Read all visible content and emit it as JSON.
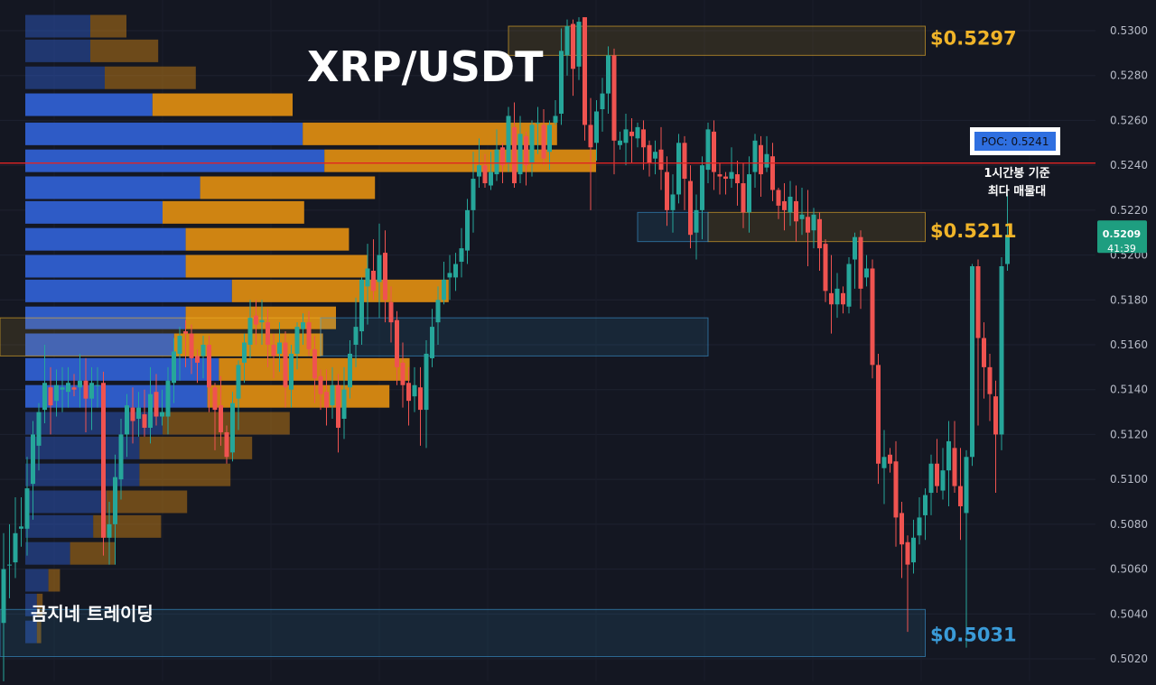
{
  "title": "XRP/USDT",
  "brand": "곰지네 트레이딩",
  "colors": {
    "background": "#141722",
    "up": "#26a69a",
    "down": "#ef5350",
    "volume_up": "#2f5fd0",
    "volume_down": "#d98a12",
    "resistance": "#f0b429",
    "support": "#3a9bd8",
    "poc_line": "#e02424",
    "price_badge": "#1e9e80"
  },
  "chart_data": {
    "type": "candlestick",
    "pair": "XRP/USDT",
    "yaxis": {
      "min": 0.5012,
      "max": 0.5312,
      "ticks": [
        "0.5300",
        "0.5280",
        "0.5260",
        "0.5240",
        "0.5220",
        "0.5200",
        "0.5180",
        "0.5160",
        "0.5140",
        "0.5120",
        "0.5100",
        "0.5080",
        "0.5060",
        "0.5040",
        "0.5020"
      ]
    },
    "candles": [
      [
        0.5036,
        0.506,
        0.501,
        0.5076
      ],
      [
        0.5062,
        0.5062,
        0.5047,
        0.508
      ],
      [
        0.5063,
        0.5076,
        0.5056,
        0.5092
      ],
      [
        0.5078,
        0.5079,
        0.507,
        0.5092
      ],
      [
        0.5078,
        0.5096,
        0.5066,
        0.511
      ],
      [
        0.5098,
        0.512,
        0.5082,
        0.5126
      ],
      [
        0.5115,
        0.513,
        0.5104,
        0.5134
      ],
      [
        0.5131,
        0.5143,
        0.5125,
        0.516
      ],
      [
        0.5141,
        0.5133,
        0.512,
        0.515
      ],
      [
        0.5135,
        0.5142,
        0.5128,
        0.5149
      ],
      [
        0.514,
        0.5141,
        0.513,
        0.515
      ],
      [
        0.5139,
        0.5143,
        0.5132,
        0.515
      ],
      [
        0.5141,
        0.514,
        0.5137,
        0.5147
      ],
      [
        0.5141,
        0.5144,
        0.5132,
        0.5156
      ],
      [
        0.5144,
        0.5136,
        0.5121,
        0.5154
      ],
      [
        0.5136,
        0.5143,
        0.5122,
        0.515
      ],
      [
        0.5142,
        0.5142,
        0.5132,
        0.515
      ],
      [
        0.5143,
        0.5074,
        0.5066,
        0.5148
      ],
      [
        0.5074,
        0.508,
        0.5062,
        0.509
      ],
      [
        0.508,
        0.5101,
        0.5062,
        0.5111
      ],
      [
        0.51,
        0.512,
        0.5091,
        0.5127
      ],
      [
        0.512,
        0.5133,
        0.511,
        0.5138
      ],
      [
        0.5132,
        0.5126,
        0.5116,
        0.5141
      ],
      [
        0.5127,
        0.5132,
        0.5119,
        0.5139
      ],
      [
        0.5129,
        0.5123,
        0.5119,
        0.514
      ],
      [
        0.5123,
        0.5138,
        0.5116,
        0.515
      ],
      [
        0.5139,
        0.5128,
        0.5124,
        0.5147
      ],
      [
        0.5128,
        0.513,
        0.5124,
        0.514
      ],
      [
        0.5128,
        0.5144,
        0.512,
        0.515
      ],
      [
        0.5143,
        0.5157,
        0.5134,
        0.5163
      ],
      [
        0.5156,
        0.5164,
        0.5144,
        0.5168
      ],
      [
        0.5166,
        0.5165,
        0.515,
        0.5171
      ],
      [
        0.5165,
        0.5154,
        0.5147,
        0.5169
      ],
      [
        0.5155,
        0.5152,
        0.5143,
        0.5158
      ],
      [
        0.5155,
        0.516,
        0.5145,
        0.5164
      ],
      [
        0.516,
        0.5141,
        0.513,
        0.5164
      ],
      [
        0.5141,
        0.5131,
        0.5113,
        0.5143
      ],
      [
        0.5133,
        0.5121,
        0.5115,
        0.5146
      ],
      [
        0.5121,
        0.511,
        0.5107,
        0.5124
      ],
      [
        0.5112,
        0.5134,
        0.5108,
        0.5139
      ],
      [
        0.5136,
        0.5151,
        0.5122,
        0.5153
      ],
      [
        0.5152,
        0.5161,
        0.5143,
        0.5165
      ],
      [
        0.516,
        0.5172,
        0.5154,
        0.518
      ],
      [
        0.5173,
        0.5169,
        0.516,
        0.518
      ],
      [
        0.517,
        0.5171,
        0.516,
        0.518
      ],
      [
        0.517,
        0.516,
        0.515,
        0.5176
      ],
      [
        0.516,
        0.5155,
        0.5145,
        0.5165
      ],
      [
        0.5156,
        0.5161,
        0.5148,
        0.517
      ],
      [
        0.5161,
        0.5141,
        0.5132,
        0.5166
      ],
      [
        0.514,
        0.5156,
        0.5132,
        0.516
      ],
      [
        0.5156,
        0.5168,
        0.5149,
        0.517
      ],
      [
        0.5167,
        0.517,
        0.516,
        0.5174
      ],
      [
        0.517,
        0.5158,
        0.5155,
        0.5175
      ],
      [
        0.5158,
        0.5145,
        0.5134,
        0.5164
      ],
      [
        0.5146,
        0.5138,
        0.5131,
        0.5149
      ],
      [
        0.5139,
        0.5132,
        0.5124,
        0.5149
      ],
      [
        0.5133,
        0.5142,
        0.5127,
        0.515
      ],
      [
        0.5142,
        0.5123,
        0.5112,
        0.5147
      ],
      [
        0.5127,
        0.514,
        0.5118,
        0.515
      ],
      [
        0.5141,
        0.5156,
        0.5136,
        0.5162
      ],
      [
        0.516,
        0.5168,
        0.515,
        0.5181
      ],
      [
        0.5166,
        0.5189,
        0.516,
        0.519
      ],
      [
        0.5186,
        0.5194,
        0.5169,
        0.5205
      ],
      [
        0.5193,
        0.5184,
        0.518,
        0.5207
      ],
      [
        0.5188,
        0.52,
        0.5172,
        0.5214
      ],
      [
        0.5201,
        0.518,
        0.517,
        0.5211
      ],
      [
        0.5179,
        0.517,
        0.5161,
        0.5186
      ],
      [
        0.5171,
        0.515,
        0.5142,
        0.5175
      ],
      [
        0.5152,
        0.5142,
        0.5132,
        0.5161
      ],
      [
        0.5143,
        0.5135,
        0.5124,
        0.515
      ],
      [
        0.5137,
        0.5142,
        0.513,
        0.515
      ],
      [
        0.5141,
        0.5131,
        0.5115,
        0.515
      ],
      [
        0.5131,
        0.5156,
        0.5114,
        0.5162
      ],
      [
        0.5154,
        0.5168,
        0.515,
        0.5176
      ],
      [
        0.517,
        0.518,
        0.516,
        0.5186
      ],
      [
        0.518,
        0.5189,
        0.5178,
        0.5197
      ],
      [
        0.519,
        0.5192,
        0.518,
        0.52
      ],
      [
        0.519,
        0.5196,
        0.5184,
        0.5201
      ],
      [
        0.5197,
        0.5203,
        0.519,
        0.5212
      ],
      [
        0.5202,
        0.522,
        0.5196,
        0.5225
      ],
      [
        0.522,
        0.5234,
        0.521,
        0.5246
      ],
      [
        0.5235,
        0.524,
        0.523,
        0.5252
      ],
      [
        0.524,
        0.5232,
        0.523,
        0.5245
      ],
      [
        0.5231,
        0.5237,
        0.5229,
        0.5246
      ],
      [
        0.5236,
        0.5247,
        0.5233,
        0.5256
      ],
      [
        0.5248,
        0.524,
        0.5232,
        0.525
      ],
      [
        0.5241,
        0.5262,
        0.5237,
        0.5266
      ],
      [
        0.5257,
        0.5232,
        0.523,
        0.5268
      ],
      [
        0.5236,
        0.5254,
        0.5232,
        0.5262
      ],
      [
        0.5253,
        0.524,
        0.5231,
        0.5255
      ],
      [
        0.5241,
        0.5258,
        0.5235,
        0.526
      ],
      [
        0.5259,
        0.5259,
        0.5245,
        0.5266
      ],
      [
        0.5258,
        0.5243,
        0.524,
        0.5265
      ],
      [
        0.5246,
        0.5258,
        0.5238,
        0.526
      ],
      [
        0.5259,
        0.5262,
        0.5258,
        0.5269
      ],
      [
        0.5263,
        0.5291,
        0.5258,
        0.5301
      ],
      [
        0.5289,
        0.5302,
        0.528,
        0.5305
      ],
      [
        0.5303,
        0.5283,
        0.5271,
        0.5305
      ],
      [
        0.5284,
        0.5304,
        0.5278,
        0.5306
      ],
      [
        0.5306,
        0.5258,
        0.5251,
        0.5306
      ],
      [
        0.5258,
        0.5248,
        0.522,
        0.527
      ],
      [
        0.525,
        0.5264,
        0.5242,
        0.5269
      ],
      [
        0.5265,
        0.5272,
        0.5255,
        0.5279
      ],
      [
        0.5272,
        0.5289,
        0.5263,
        0.5293
      ],
      [
        0.5289,
        0.5251,
        0.5236,
        0.5292
      ],
      [
        0.5249,
        0.5251,
        0.5247,
        0.5255
      ],
      [
        0.525,
        0.5256,
        0.524,
        0.5263
      ],
      [
        0.5255,
        0.5253,
        0.5241,
        0.5261
      ],
      [
        0.5252,
        0.5257,
        0.5248,
        0.5259
      ],
      [
        0.5256,
        0.5248,
        0.5238,
        0.526
      ],
      [
        0.5249,
        0.5241,
        0.5235,
        0.5251
      ],
      [
        0.5243,
        0.5246,
        0.5236,
        0.5251
      ],
      [
        0.5247,
        0.5238,
        0.5229,
        0.5257
      ],
      [
        0.5237,
        0.522,
        0.5213,
        0.5244
      ],
      [
        0.522,
        0.5227,
        0.521,
        0.5236
      ],
      [
        0.5227,
        0.525,
        0.5223,
        0.5254
      ],
      [
        0.525,
        0.5234,
        0.522,
        0.5253
      ],
      [
        0.5233,
        0.5209,
        0.5203,
        0.524
      ],
      [
        0.521,
        0.522,
        0.5198,
        0.5227
      ],
      [
        0.522,
        0.524,
        0.5207,
        0.5244
      ],
      [
        0.5238,
        0.5256,
        0.5232,
        0.5259
      ],
      [
        0.5255,
        0.5237,
        0.5229,
        0.526
      ],
      [
        0.5236,
        0.5235,
        0.5227,
        0.5241
      ],
      [
        0.5235,
        0.5234,
        0.5227,
        0.5237
      ],
      [
        0.5234,
        0.5237,
        0.523,
        0.5248
      ],
      [
        0.5236,
        0.5232,
        0.5222,
        0.5242
      ],
      [
        0.5232,
        0.5219,
        0.5212,
        0.5241
      ],
      [
        0.5219,
        0.5236,
        0.521,
        0.5244
      ],
      [
        0.5237,
        0.5251,
        0.523,
        0.5254
      ],
      [
        0.5249,
        0.5236,
        0.5226,
        0.5253
      ],
      [
        0.5239,
        0.5245,
        0.5237,
        0.5253
      ],
      [
        0.5244,
        0.5229,
        0.5224,
        0.525
      ],
      [
        0.5229,
        0.5222,
        0.5216,
        0.523
      ],
      [
        0.5224,
        0.522,
        0.5211,
        0.5232
      ],
      [
        0.5219,
        0.5226,
        0.5213,
        0.5233
      ],
      [
        0.5224,
        0.5215,
        0.5206,
        0.5231
      ],
      [
        0.5216,
        0.5218,
        0.5209,
        0.523
      ],
      [
        0.5217,
        0.521,
        0.5195,
        0.5229
      ],
      [
        0.5211,
        0.5218,
        0.5203,
        0.5221
      ],
      [
        0.5216,
        0.5203,
        0.5193,
        0.5219
      ],
      [
        0.5205,
        0.5184,
        0.5179,
        0.5207
      ],
      [
        0.5183,
        0.5178,
        0.5165,
        0.52
      ],
      [
        0.5178,
        0.5185,
        0.5172,
        0.5192
      ],
      [
        0.5183,
        0.5178,
        0.5174,
        0.5186
      ],
      [
        0.5177,
        0.5196,
        0.5174,
        0.5199
      ],
      [
        0.5198,
        0.5208,
        0.5185,
        0.521
      ],
      [
        0.5208,
        0.5185,
        0.5176,
        0.5211
      ],
      [
        0.519,
        0.5194,
        0.5186,
        0.52
      ],
      [
        0.5194,
        0.5151,
        0.5145,
        0.5198
      ],
      [
        0.5151,
        0.5107,
        0.5098,
        0.5156
      ],
      [
        0.5105,
        0.511,
        0.5089,
        0.5122
      ],
      [
        0.5111,
        0.5107,
        0.5103,
        0.5114
      ],
      [
        0.5108,
        0.5083,
        0.507,
        0.5117
      ],
      [
        0.5085,
        0.5071,
        0.5056,
        0.509
      ],
      [
        0.5072,
        0.5062,
        0.5032,
        0.5075
      ],
      [
        0.5063,
        0.5074,
        0.5058,
        0.5082
      ],
      [
        0.5075,
        0.5083,
        0.5071,
        0.5092
      ],
      [
        0.5084,
        0.5093,
        0.5073,
        0.5096
      ],
      [
        0.5094,
        0.5107,
        0.5084,
        0.5111
      ],
      [
        0.5107,
        0.5097,
        0.5094,
        0.5118
      ],
      [
        0.5095,
        0.5104,
        0.5091,
        0.5114
      ],
      [
        0.5104,
        0.5117,
        0.5088,
        0.5126
      ],
      [
        0.5114,
        0.5097,
        0.5094,
        0.5126
      ],
      [
        0.5097,
        0.5088,
        0.5073,
        0.5114
      ],
      [
        0.5085,
        0.511,
        0.5025,
        0.5113
      ],
      [
        0.511,
        0.5195,
        0.5106,
        0.5196
      ],
      [
        0.5195,
        0.5163,
        0.5124,
        0.5198
      ],
      [
        0.5163,
        0.515,
        0.5136,
        0.517
      ],
      [
        0.515,
        0.5138,
        0.5126,
        0.5156
      ],
      [
        0.5137,
        0.512,
        0.5094,
        0.5144
      ],
      [
        0.512,
        0.5195,
        0.5113,
        0.5199
      ],
      [
        0.5196,
        0.5209,
        0.5193,
        0.5227
      ]
    ],
    "volume_profile": [
      {
        "price": 0.5302,
        "buy": 0.045,
        "sell": 0.025
      },
      {
        "price": 0.5291,
        "buy": 0.045,
        "sell": 0.047
      },
      {
        "price": 0.5279,
        "buy": 0.055,
        "sell": 0.063
      },
      {
        "price": 0.5267,
        "buy": 0.088,
        "sell": 0.097
      },
      {
        "price": 0.5254,
        "buy": 0.192,
        "sell": 0.176
      },
      {
        "price": 0.5242,
        "buy": 0.207,
        "sell": 0.188
      },
      {
        "price": 0.523,
        "buy": 0.121,
        "sell": 0.121
      },
      {
        "price": 0.5219,
        "buy": 0.095,
        "sell": 0.098
      },
      {
        "price": 0.5207,
        "buy": 0.111,
        "sell": 0.113
      },
      {
        "price": 0.5195,
        "buy": 0.111,
        "sell": 0.126
      },
      {
        "price": 0.5184,
        "buy": 0.143,
        "sell": 0.15
      },
      {
        "price": 0.5172,
        "buy": 0.111,
        "sell": 0.104
      },
      {
        "price": 0.516,
        "buy": 0.103,
        "sell": 0.103
      },
      {
        "price": 0.5149,
        "buy": 0.134,
        "sell": 0.132
      },
      {
        "price": 0.5137,
        "buy": 0.126,
        "sell": 0.126
      },
      {
        "price": 0.5125,
        "buy": 0.095,
        "sell": 0.088
      },
      {
        "price": 0.5114,
        "buy": 0.079,
        "sell": 0.078
      },
      {
        "price": 0.5102,
        "buy": 0.079,
        "sell": 0.063
      },
      {
        "price": 0.509,
        "buy": 0.056,
        "sell": 0.056
      },
      {
        "price": 0.5079,
        "buy": 0.047,
        "sell": 0.047
      },
      {
        "price": 0.5067,
        "buy": 0.031,
        "sell": 0.031
      },
      {
        "price": 0.5055,
        "buy": 0.016,
        "sell": 0.008
      },
      {
        "price": 0.5044,
        "buy": 0.008,
        "sell": 0.004
      },
      {
        "price": 0.5032,
        "buy": 0.008,
        "sell": 0.003
      }
    ],
    "zones": [
      {
        "type": "resistance",
        "from_bar": 86,
        "to_bar": 157,
        "top": 0.5302,
        "bottom": 0.5289
      },
      {
        "type": "resistance",
        "from_bar": 120,
        "to_bar": 157,
        "top": 0.5219,
        "bottom": 0.5206
      },
      {
        "type": "support",
        "from_bar": 108,
        "to_bar": 120,
        "top": 0.5219,
        "bottom": 0.5206
      },
      {
        "type": "resistance",
        "from_bar": -5,
        "to_bar": 54,
        "top": 0.5172,
        "bottom": 0.5155
      },
      {
        "type": "support",
        "from_bar": 54,
        "to_bar": 120,
        "top": 0.5172,
        "bottom": 0.5155
      },
      {
        "type": "support",
        "from_bar": -5,
        "to_bar": 157,
        "top": 0.5042,
        "bottom": 0.5021
      }
    ],
    "level_labels": [
      {
        "text": "$0.5297",
        "price": 0.5297,
        "color": "#f0b429"
      },
      {
        "text": "$0.5211",
        "price": 0.5211,
        "color": "#f0b429"
      },
      {
        "text": "$0.5031",
        "price": 0.5031,
        "color": "#3a9bd8"
      }
    ],
    "poc": {
      "label": "POC: 0.5241",
      "price": 0.5241,
      "note_line1": "1시간봉 기준",
      "note_line2": "최다 매물대"
    },
    "current_price": {
      "value": "0.5209",
      "timer": "41:39",
      "price": 0.5209
    }
  }
}
